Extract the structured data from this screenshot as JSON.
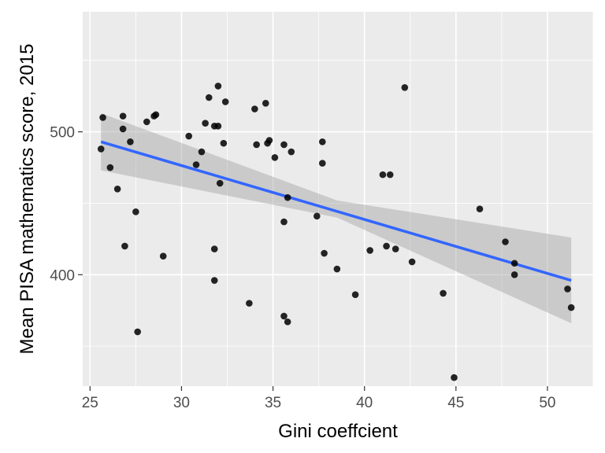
{
  "chart_data": {
    "type": "scatter",
    "xlabel": "Gini coeffcient",
    "ylabel": "Mean PISA mathematics score, 2015",
    "xlim": [
      24.6,
      52.5
    ],
    "ylim": [
      322,
      584
    ],
    "x_ticks": [
      25,
      30,
      35,
      40,
      45,
      50
    ],
    "y_ticks": [
      400,
      500
    ],
    "grid": true,
    "colors": {
      "panel": "#ebebeb",
      "grid": "#ffffff",
      "points": "#000000",
      "fit_line": "#3366ff",
      "ribbon": "#999999"
    },
    "points": [
      [
        25.6,
        488
      ],
      [
        25.7,
        510
      ],
      [
        26.1,
        475
      ],
      [
        26.5,
        460
      ],
      [
        26.8,
        502
      ],
      [
        26.8,
        511
      ],
      [
        26.9,
        420
      ],
      [
        27.2,
        493
      ],
      [
        27.5,
        444
      ],
      [
        27.6,
        360
      ],
      [
        28.1,
        507
      ],
      [
        28.5,
        511
      ],
      [
        28.6,
        512
      ],
      [
        29.0,
        413
      ],
      [
        30.4,
        497
      ],
      [
        30.8,
        477
      ],
      [
        31.1,
        486
      ],
      [
        31.3,
        506
      ],
      [
        31.5,
        524
      ],
      [
        31.8,
        504
      ],
      [
        31.8,
        418
      ],
      [
        31.8,
        396
      ],
      [
        32.0,
        532
      ],
      [
        32.0,
        504
      ],
      [
        32.1,
        464
      ],
      [
        32.3,
        492
      ],
      [
        32.4,
        521
      ],
      [
        33.7,
        380
      ],
      [
        34.0,
        516
      ],
      [
        34.1,
        491
      ],
      [
        34.6,
        520
      ],
      [
        34.7,
        492
      ],
      [
        34.8,
        494
      ],
      [
        35.1,
        482
      ],
      [
        35.6,
        437
      ],
      [
        35.6,
        491
      ],
      [
        35.6,
        371
      ],
      [
        35.8,
        454
      ],
      [
        35.8,
        367
      ],
      [
        36.0,
        486
      ],
      [
        37.4,
        441
      ],
      [
        37.7,
        493
      ],
      [
        37.7,
        478
      ],
      [
        37.8,
        415
      ],
      [
        38.5,
        404
      ],
      [
        39.5,
        386
      ],
      [
        40.3,
        417
      ],
      [
        41.0,
        470
      ],
      [
        41.2,
        420
      ],
      [
        41.4,
        470
      ],
      [
        41.7,
        418
      ],
      [
        42.2,
        531
      ],
      [
        42.6,
        409
      ],
      [
        44.3,
        387
      ],
      [
        44.9,
        328
      ],
      [
        46.3,
        446
      ],
      [
        47.7,
        423
      ],
      [
        48.2,
        408
      ],
      [
        48.2,
        400
      ],
      [
        51.1,
        390
      ],
      [
        51.3,
        377
      ]
    ],
    "fit": {
      "x": [
        25.6,
        51.3
      ],
      "y": [
        493,
        396
      ]
    },
    "ribbon": {
      "x": [
        25.6,
        38.5,
        51.3
      ],
      "upper": [
        513,
        452,
        426
      ],
      "lower": [
        473,
        440,
        366
      ]
    }
  }
}
